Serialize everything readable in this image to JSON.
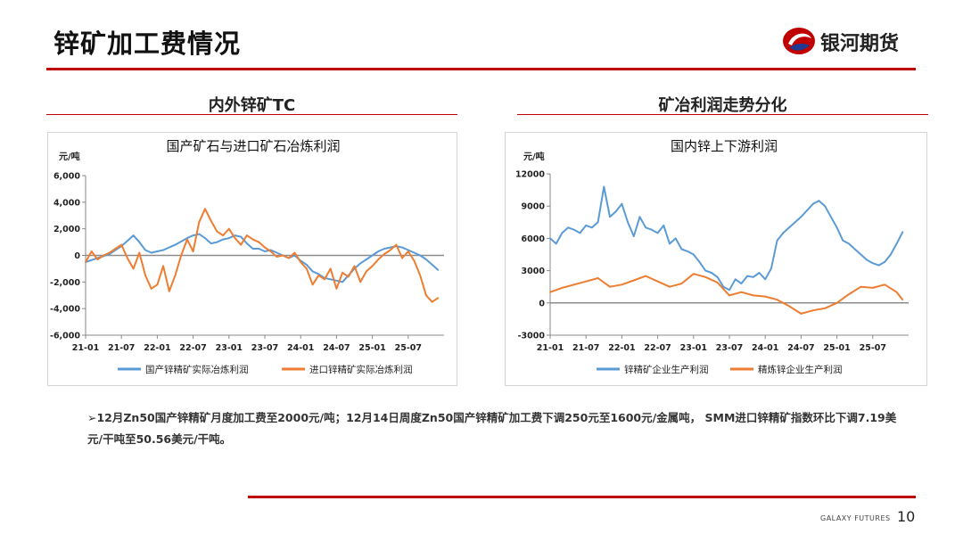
{
  "header": {
    "title": "锌矿加工费情况",
    "logo_text": "银河期货"
  },
  "panels": [
    {
      "section_title": "内外锌矿TC"
    },
    {
      "section_title": "矿冶利润走势分化"
    }
  ],
  "bullet_text": "➢12月Zn50国产锌精矿月度加工费至2000元/吨；12月14日周度Zn50国产锌精矿加工费下调250元至1600元/金属吨， SMM进口锌精矿指数环比下调7.19美元/干吨至50.56美元/干吨。",
  "footer": {
    "brand": "GALAXY FUTURES",
    "page_number": "10"
  },
  "colors": {
    "accent_red": "#c00000",
    "series_blue": "#5b9bd5",
    "series_orange": "#ed7d31"
  },
  "chart_data": [
    {
      "type": "line",
      "title": "国产矿石与进口矿石冶炼利润",
      "ylabel": "元/吨",
      "ylim": [
        -6000,
        6000
      ],
      "yticks": [
        6000,
        4000,
        2000,
        0,
        -2000,
        -4000,
        -6000
      ],
      "ytick_labels": [
        "6,000",
        "4,000",
        "2,000",
        "0",
        "-2,000",
        "-4,000",
        "-6,000"
      ],
      "xlim": [
        "2021-01",
        "2025-12"
      ],
      "xtick_labels": [
        "21-01",
        "21-07",
        "22-01",
        "22-07",
        "23-01",
        "23-07",
        "24-01",
        "24-07",
        "25-01",
        "25-07"
      ],
      "grid": false,
      "legend": "bottom",
      "series": [
        {
          "name": "国产锌精矿实际冶炼利润",
          "color": "#5b9bd5",
          "x": [
            0,
            2,
            4,
            6,
            8,
            9,
            10,
            11,
            12,
            13,
            15,
            17,
            18,
            19,
            20,
            21,
            22,
            23,
            24,
            25,
            26,
            27,
            28,
            29,
            30,
            31,
            33,
            34,
            35,
            36,
            37,
            38,
            39,
            40,
            41,
            42,
            43,
            44,
            45,
            46,
            47,
            48,
            49,
            50,
            51,
            52,
            53,
            54,
            55,
            56,
            57,
            58,
            59
          ],
          "y": [
            -500,
            -200,
            100,
            700,
            1500,
            1000,
            400,
            200,
            300,
            400,
            800,
            1300,
            1500,
            1600,
            1300,
            900,
            1000,
            1200,
            1300,
            1500,
            1400,
            900,
            500,
            500,
            300,
            400,
            0,
            -200,
            0,
            -400,
            -700,
            -1200,
            -1400,
            -1700,
            -1800,
            -1900,
            -2000,
            -1500,
            -1000,
            -600,
            -300,
            0,
            300,
            500,
            600,
            700,
            600,
            400,
            200,
            0,
            -300,
            -700,
            -1100
          ]
        },
        {
          "name": "进口锌精矿实际冶炼利润",
          "color": "#ed7d31",
          "x": [
            0,
            1,
            2,
            3,
            4,
            5,
            6,
            7,
            8,
            9,
            10,
            11,
            12,
            13,
            14,
            15,
            16,
            17,
            18,
            19,
            20,
            21,
            22,
            23,
            24,
            25,
            26,
            27,
            28,
            29,
            30,
            31,
            32,
            33,
            34,
            35,
            36,
            37,
            38,
            39,
            40,
            41,
            42,
            43,
            44,
            45,
            46,
            47,
            48,
            49,
            50,
            51,
            52,
            53,
            54,
            55,
            56,
            57,
            58,
            59
          ],
          "y": [
            -500,
            300,
            -300,
            0,
            200,
            500,
            800,
            -200,
            -1000,
            200,
            -1500,
            -2500,
            -2200,
            -800,
            -2700,
            -1500,
            0,
            1200,
            300,
            2500,
            3500,
            2600,
            1800,
            1500,
            2000,
            1300,
            800,
            1500,
            1200,
            1000,
            600,
            300,
            -100,
            0,
            -200,
            200,
            -500,
            -1000,
            -2200,
            -1500,
            -1800,
            -1000,
            -2500,
            -1300,
            -1600,
            -800,
            -2000,
            -1200,
            -800,
            -300,
            100,
            400,
            800,
            -200,
            300,
            -400,
            -1500,
            -3000,
            -3500,
            -3200
          ]
        }
      ]
    },
    {
      "type": "line",
      "title": "国内锌上下游利润",
      "ylabel": "元/吨",
      "ylim": [
        -3000,
        12000
      ],
      "yticks": [
        12000,
        9000,
        6000,
        3000,
        0,
        -3000
      ],
      "ytick_labels": [
        "12000",
        "9000",
        "6000",
        "3000",
        "0",
        "-3000"
      ],
      "xlim": [
        "2021-01",
        "2025-12"
      ],
      "xtick_labels": [
        "21-01",
        "21-07",
        "22-01",
        "22-07",
        "23-01",
        "23-07",
        "24-01",
        "24-07",
        "25-01",
        "25-07"
      ],
      "grid": false,
      "legend": "bottom",
      "series": [
        {
          "name": "锌精矿企业生产利润",
          "color": "#5b9bd5",
          "x": [
            0,
            1,
            2,
            3,
            4,
            5,
            6,
            7,
            8,
            9,
            10,
            11,
            12,
            13,
            14,
            15,
            16,
            17,
            18,
            19,
            20,
            21,
            22,
            23,
            24,
            25,
            26,
            27,
            28,
            29,
            30,
            31,
            32,
            33,
            34,
            35,
            36,
            37,
            38,
            39,
            40,
            41,
            42,
            43,
            44,
            45,
            46,
            47,
            48,
            49,
            50,
            51,
            52,
            53,
            54,
            55,
            56,
            57,
            58,
            59
          ],
          "y": [
            6000,
            5500,
            6500,
            7000,
            6800,
            6500,
            7200,
            7000,
            7500,
            10800,
            8000,
            8500,
            9200,
            7500,
            6200,
            8000,
            7000,
            6800,
            6500,
            7200,
            5500,
            6000,
            5000,
            4800,
            4500,
            3800,
            3000,
            2800,
            2400,
            1500,
            1200,
            2200,
            1800,
            2500,
            2400,
            2800,
            2200,
            3200,
            5800,
            6500,
            7000,
            7500,
            8000,
            8600,
            9200,
            9500,
            9000,
            8000,
            7000,
            5800,
            5500,
            5000,
            4500,
            4000,
            3700,
            3500,
            3800,
            4500,
            5500,
            6600
          ]
        },
        {
          "name": "精炼锌企业生产利润",
          "color": "#ed7d31",
          "x": [
            0,
            2,
            4,
            6,
            8,
            10,
            12,
            14,
            16,
            18,
            20,
            22,
            24,
            26,
            28,
            30,
            32,
            34,
            36,
            38,
            40,
            42,
            44,
            46,
            48,
            50,
            52,
            54,
            56,
            58,
            59
          ],
          "y": [
            1000,
            1400,
            1700,
            2000,
            2300,
            1500,
            1700,
            2100,
            2500,
            2000,
            1500,
            1800,
            2700,
            2400,
            1900,
            700,
            1000,
            700,
            600,
            300,
            -300,
            -1000,
            -700,
            -500,
            0,
            800,
            1500,
            1400,
            1700,
            1000,
            300
          ]
        }
      ]
    }
  ]
}
